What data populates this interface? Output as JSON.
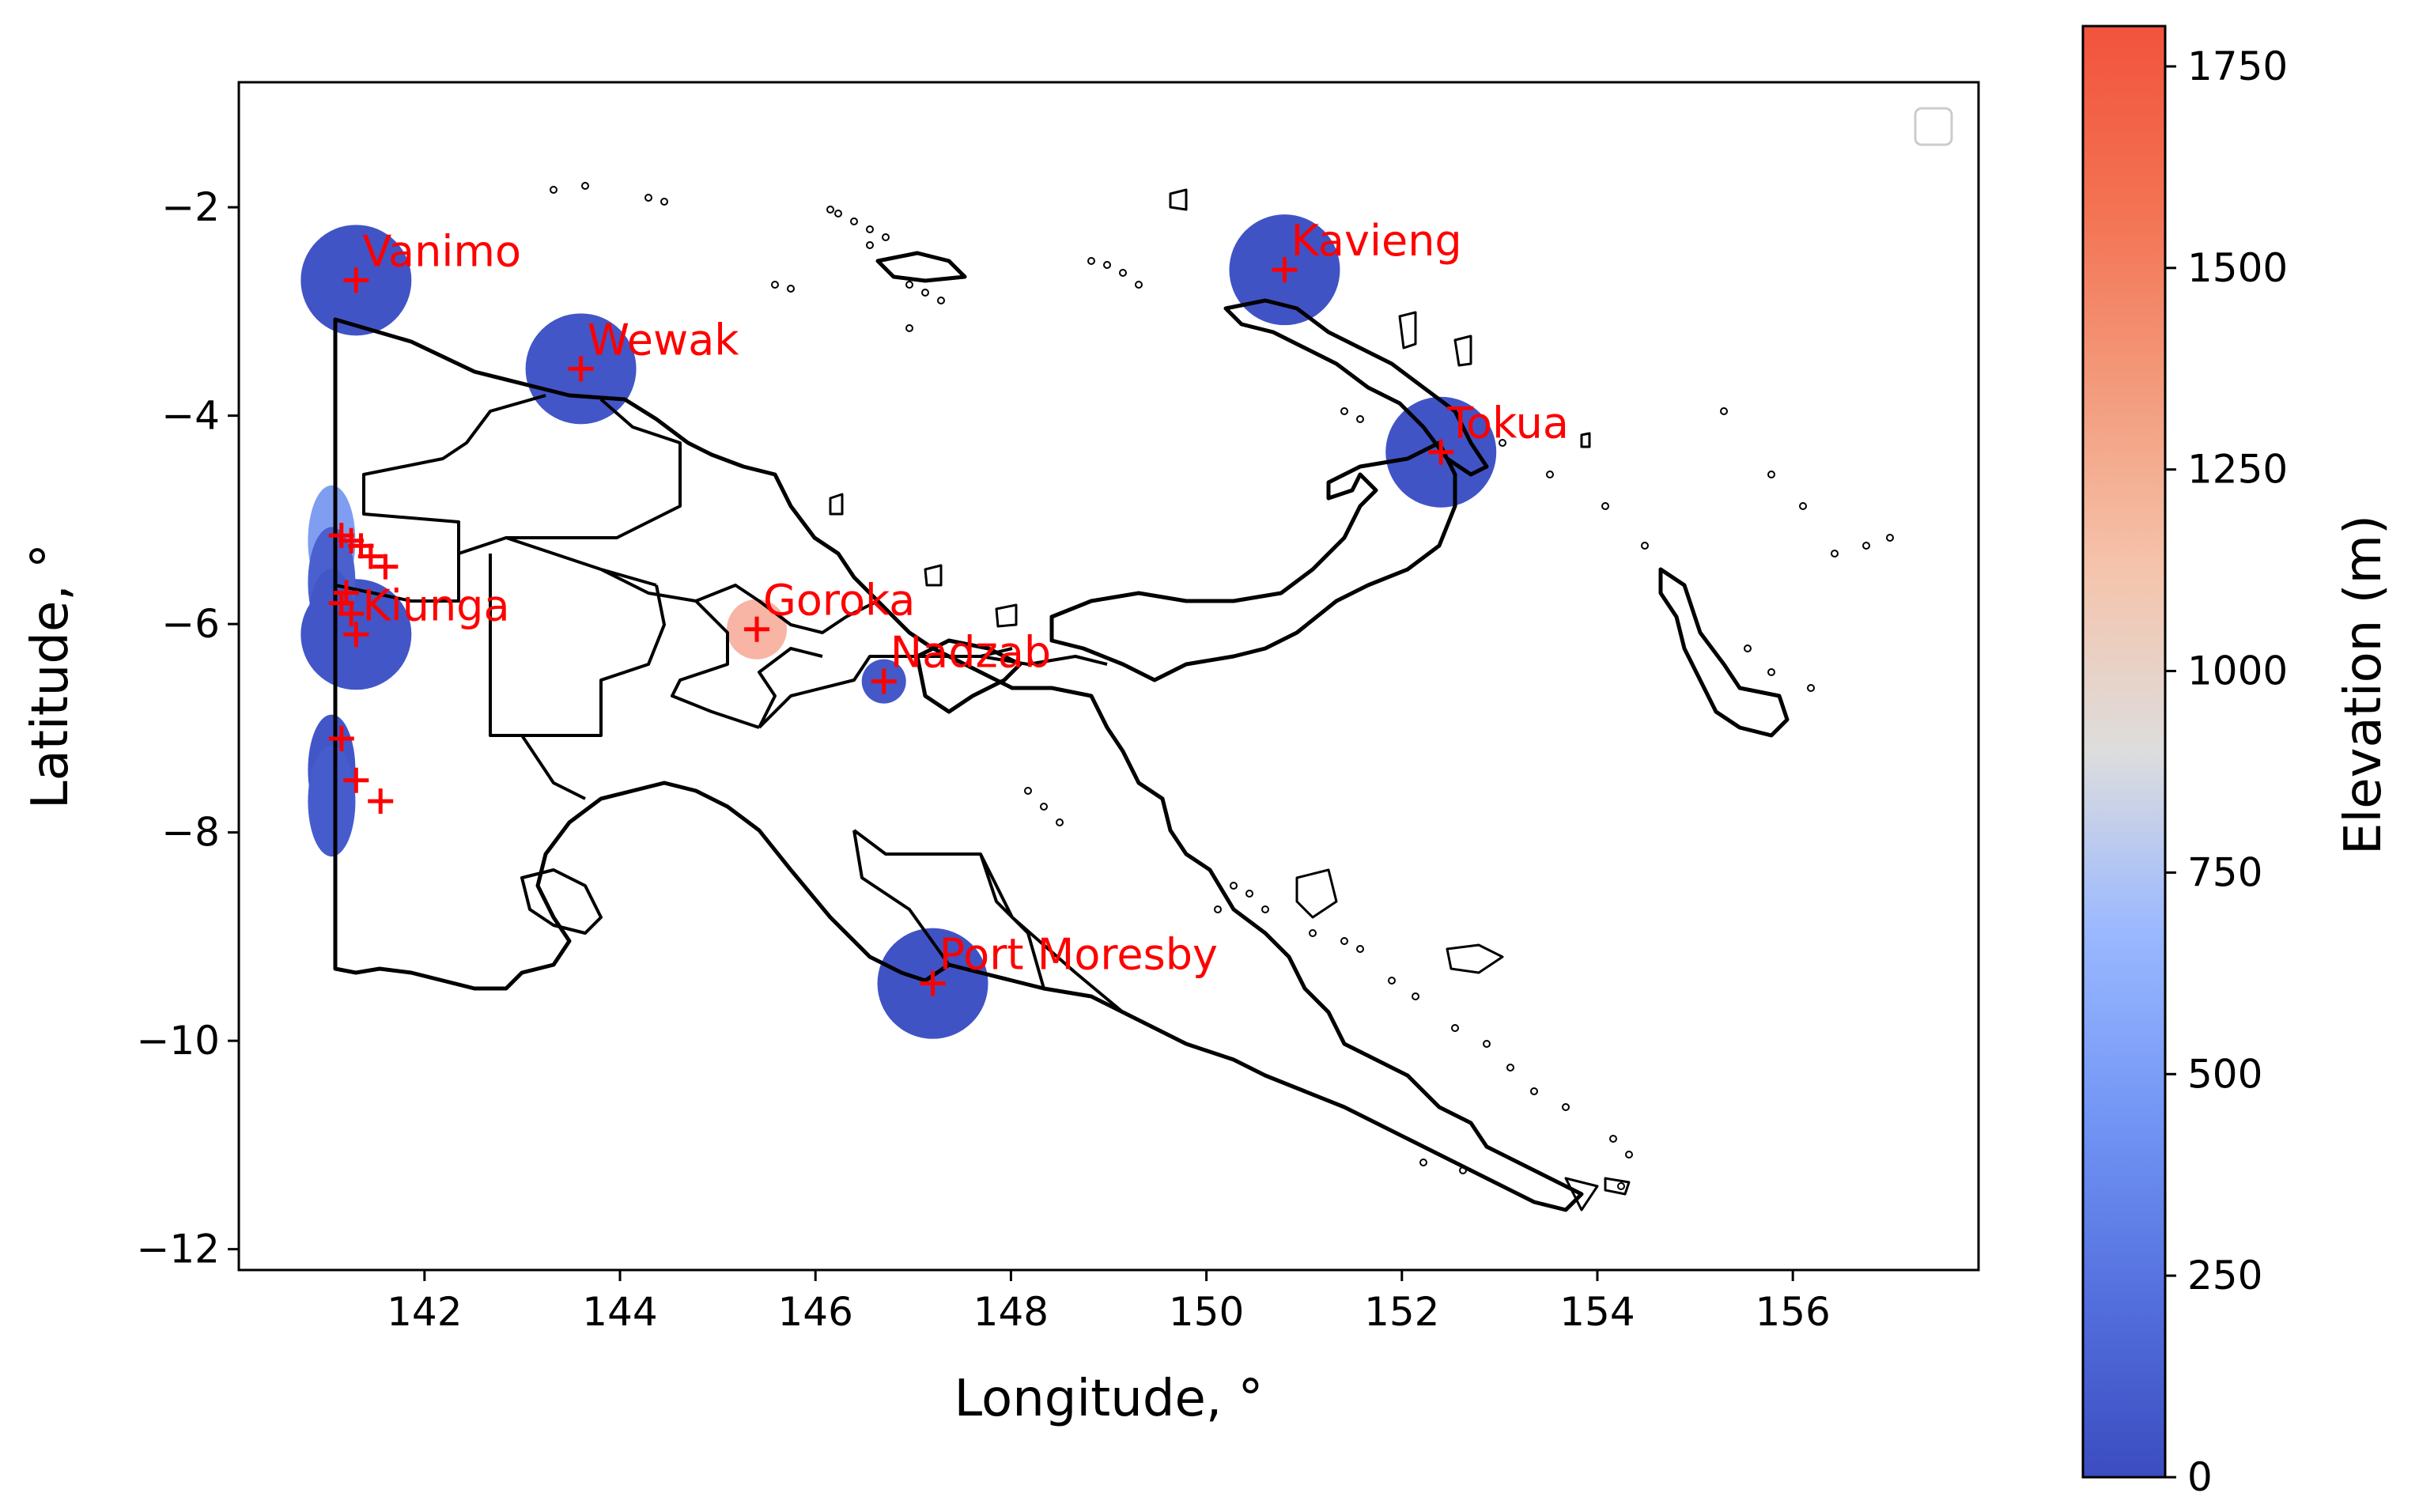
{
  "chart_data": {
    "type": "map",
    "xlabel": "Longitude, °",
    "ylabel": "Latitude, °",
    "xlim": [
      140.1,
      157.9
    ],
    "ylim": [
      -12.2,
      -0.8
    ],
    "xticks": [
      142,
      144,
      146,
      148,
      150,
      152,
      154,
      156
    ],
    "yticks": [
      -2,
      -4,
      -6,
      -8,
      -10,
      -12
    ],
    "colorbar": {
      "label": "Elevation (m)",
      "range": [
        0,
        1800
      ],
      "ticks": [
        0,
        250,
        500,
        750,
        1000,
        1250,
        1500,
        1750
      ],
      "colormap": "coolwarm"
    },
    "colors": {
      "low": "#3b4cc0",
      "mid": "#dddddd",
      "high": "#f2533c",
      "marker": "#ff0000",
      "outline": "#000000"
    },
    "legend": {
      "placement": "upper-right",
      "entries": []
    },
    "cities": [
      {
        "name": "Vanimo",
        "lon": 141.3,
        "lat": -2.7,
        "elevation": 50
      },
      {
        "name": "Wewak",
        "lon": 143.6,
        "lat": -3.55,
        "elevation": 60
      },
      {
        "name": "Kavieng",
        "lon": 150.8,
        "lat": -2.6,
        "elevation": 40
      },
      {
        "name": "Tokua",
        "lon": 152.4,
        "lat": -4.35,
        "elevation": 50
      },
      {
        "name": "Kiunga",
        "lon": 141.3,
        "lat": -6.1,
        "elevation": 60
      },
      {
        "name": "Goroka",
        "lon": 145.4,
        "lat": -6.05,
        "elevation": 1580
      },
      {
        "name": "Nadzab",
        "lon": 146.7,
        "lat": -6.55,
        "elevation": 70
      },
      {
        "name": "Port Moresby",
        "lon": 147.2,
        "lat": -9.45,
        "elevation": 40
      }
    ],
    "extra_markers": [
      {
        "lon": 141.15,
        "lat": -5.15
      },
      {
        "lon": 141.25,
        "lat": -5.2
      },
      {
        "lon": 141.35,
        "lat": -5.25
      },
      {
        "lon": 141.45,
        "lat": -5.35
      },
      {
        "lon": 141.6,
        "lat": -5.45
      },
      {
        "lon": 141.2,
        "lat": -5.7
      },
      {
        "lon": 141.15,
        "lat": -5.8
      },
      {
        "lon": 141.25,
        "lat": -5.9
      },
      {
        "lon": 141.15,
        "lat": -7.1
      },
      {
        "lon": 141.3,
        "lat": -7.5
      },
      {
        "lon": 141.55,
        "lat": -7.7
      }
    ]
  }
}
